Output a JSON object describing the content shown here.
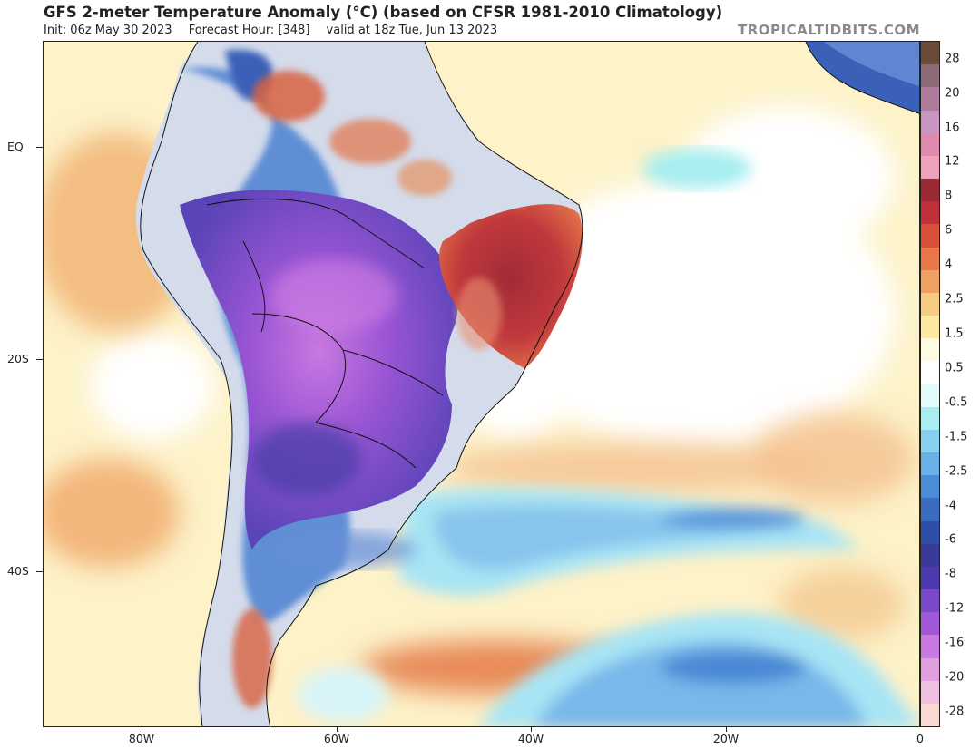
{
  "header": {
    "title": "GFS 2-meter Temperature Anomaly (°C) (based on CFSR 1981-2010 Climatology)",
    "init": "Init: 06z May 30 2023",
    "forecast_hour": "Forecast Hour: [348]",
    "valid": "valid at 18z Tue, Jun 13 2023",
    "brand": "TROPICALTIDBITS.COM"
  },
  "axes": {
    "lat_labels": [
      "EQ",
      "20S",
      "40S"
    ],
    "lon_labels": [
      "80W",
      "60W",
      "40W",
      "20W",
      "0"
    ]
  },
  "colorbar": {
    "labels": [
      "28",
      "20",
      "16",
      "12",
      "8",
      "6",
      "4",
      "2.5",
      "1.5",
      "0.5",
      "-0.5",
      "-1.5",
      "-2.5",
      "-4",
      "-6",
      "-8",
      "-12",
      "-16",
      "-20",
      "-28"
    ],
    "colors": [
      "#6b4a3a",
      "#8c6a78",
      "#b07a9c",
      "#c896c0",
      "#e08ab0",
      "#f0a0b8",
      "#9c2a34",
      "#c0303a",
      "#d85038",
      "#e87848",
      "#f0a060",
      "#f8cc80",
      "#fde8a0",
      "#fffbe0",
      "#ffffff",
      "#e4fbfb",
      "#a8eef0",
      "#88d0f0",
      "#6ab0e8",
      "#4a8cd8",
      "#3a6cc0",
      "#2c4ea8",
      "#3a3a98",
      "#4e3ab0",
      "#7a48c8",
      "#a058d8",
      "#c878e0",
      "#e0a0e0",
      "#f0c0e0",
      "#f8d8d0"
    ]
  },
  "map": {
    "regions": [
      "south-america-landmass",
      "strong-cold-anomaly-interior",
      "warm-anomaly-northeast-brazil",
      "cold-anomaly-south-atlantic-band",
      "cold-anomaly-southern-ocean",
      "warm-anomaly-pacific",
      "africa-west-coast"
    ]
  }
}
